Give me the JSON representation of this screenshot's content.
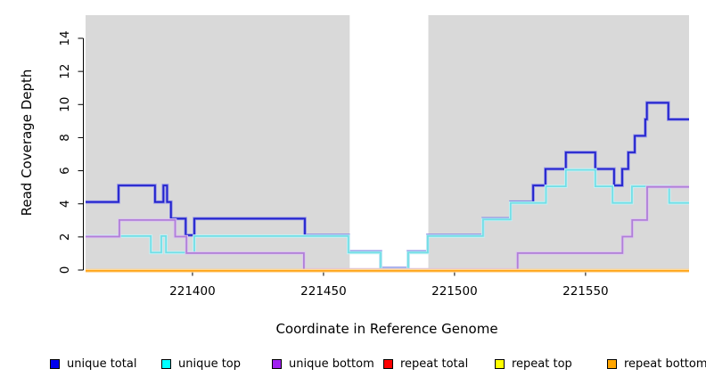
{
  "chart_data": {
    "type": "line",
    "subtype": "step-coverage",
    "title": "",
    "xlabel": "Coordinate in Reference Genome",
    "ylabel": "Read Coverage Depth",
    "x_range": [
      221359.2,
      221589.5
    ],
    "ylim": [
      0,
      15.4
    ],
    "x_ticks": [
      221400,
      221450,
      221500,
      221550
    ],
    "y_ticks": [
      0,
      2,
      4,
      6,
      8,
      10,
      12,
      14
    ],
    "grid": "off",
    "panel_bg": "#D9D9D9",
    "page_bg": "#FFFFFF",
    "highlight_band": {
      "x_start": 221460,
      "x_end": 221490,
      "color": "#FFFFFF"
    },
    "series": [
      {
        "name": "unique total",
        "color": "#2222CC",
        "halo_color": "#9090E8",
        "steps": [
          [
            221359.2,
            4
          ],
          [
            221371.8,
            5
          ],
          [
            221385.7,
            4
          ],
          [
            221388.9,
            5
          ],
          [
            221390.3,
            4
          ],
          [
            221391.8,
            3
          ],
          [
            221397.4,
            2
          ],
          [
            221400.7,
            3
          ],
          [
            221442.9,
            2
          ],
          [
            221459.5,
            1
          ],
          [
            221471.8,
            0
          ],
          [
            221482.3,
            1
          ],
          [
            221489.8,
            2
          ],
          [
            221510.9,
            3
          ],
          [
            221521.4,
            4
          ],
          [
            221530.0,
            5
          ],
          [
            221534.7,
            6
          ],
          [
            221542.5,
            7
          ],
          [
            221553.7,
            6
          ],
          [
            221560.9,
            5
          ],
          [
            221564.0,
            6
          ],
          [
            221566.3,
            7
          ],
          [
            221568.8,
            8
          ],
          [
            221572.8,
            9
          ],
          [
            221573.4,
            10
          ],
          [
            221581.6,
            9
          ]
        ]
      },
      {
        "name": "unique top",
        "color": "#72DEE6",
        "halo_color": "#C4F2F5",
        "steps": [
          [
            221359.2,
            2
          ],
          [
            221384.1,
            1
          ],
          [
            221388.1,
            2
          ],
          [
            221389.9,
            1
          ],
          [
            221400.7,
            2
          ],
          [
            221459.5,
            1
          ],
          [
            221471.8,
            0
          ],
          [
            221482.3,
            1
          ],
          [
            221489.8,
            2
          ],
          [
            221510.9,
            3
          ],
          [
            221521.4,
            4
          ],
          [
            221534.9,
            5
          ],
          [
            221542.5,
            6
          ],
          [
            221553.7,
            5
          ],
          [
            221560.3,
            4
          ],
          [
            221567.7,
            5
          ],
          [
            221581.9,
            4
          ]
        ]
      },
      {
        "name": "unique bottom",
        "color": "#B07FD8",
        "halo_color": "#DCC6EF",
        "steps": [
          [
            221359.2,
            2
          ],
          [
            221372.1,
            3
          ],
          [
            221393.4,
            2
          ],
          [
            221397.7,
            1
          ],
          [
            221442.5,
            0
          ],
          [
            221524.1,
            1
          ],
          [
            221564.1,
            2
          ],
          [
            221567.8,
            3
          ],
          [
            221573.5,
            5
          ]
        ]
      },
      {
        "name": "repeat total",
        "color": "#E00000",
        "halo_color": "#F09090",
        "steps": [
          [
            221359.2,
            0
          ]
        ]
      },
      {
        "name": "repeat top",
        "color": "#FFFF00",
        "halo_color": "#FFFFA0",
        "steps": [
          [
            221359.2,
            0
          ]
        ]
      },
      {
        "name": "repeat bottom",
        "color": "#FFA519",
        "halo_color": "#FFD596",
        "steps": [
          [
            221359.2,
            0
          ]
        ]
      }
    ],
    "legend": {
      "position": "bottom",
      "entries": [
        {
          "label": "unique total",
          "color": "#0000EE"
        },
        {
          "label": "unique top",
          "color": "#00FFFF"
        },
        {
          "label": "unique bottom",
          "color": "#A020F0"
        },
        {
          "label": "repeat total",
          "color": "#FF0000"
        },
        {
          "label": "repeat top",
          "color": "#FFFF00"
        },
        {
          "label": "repeat bottom",
          "color": "#FFA500"
        }
      ]
    }
  }
}
